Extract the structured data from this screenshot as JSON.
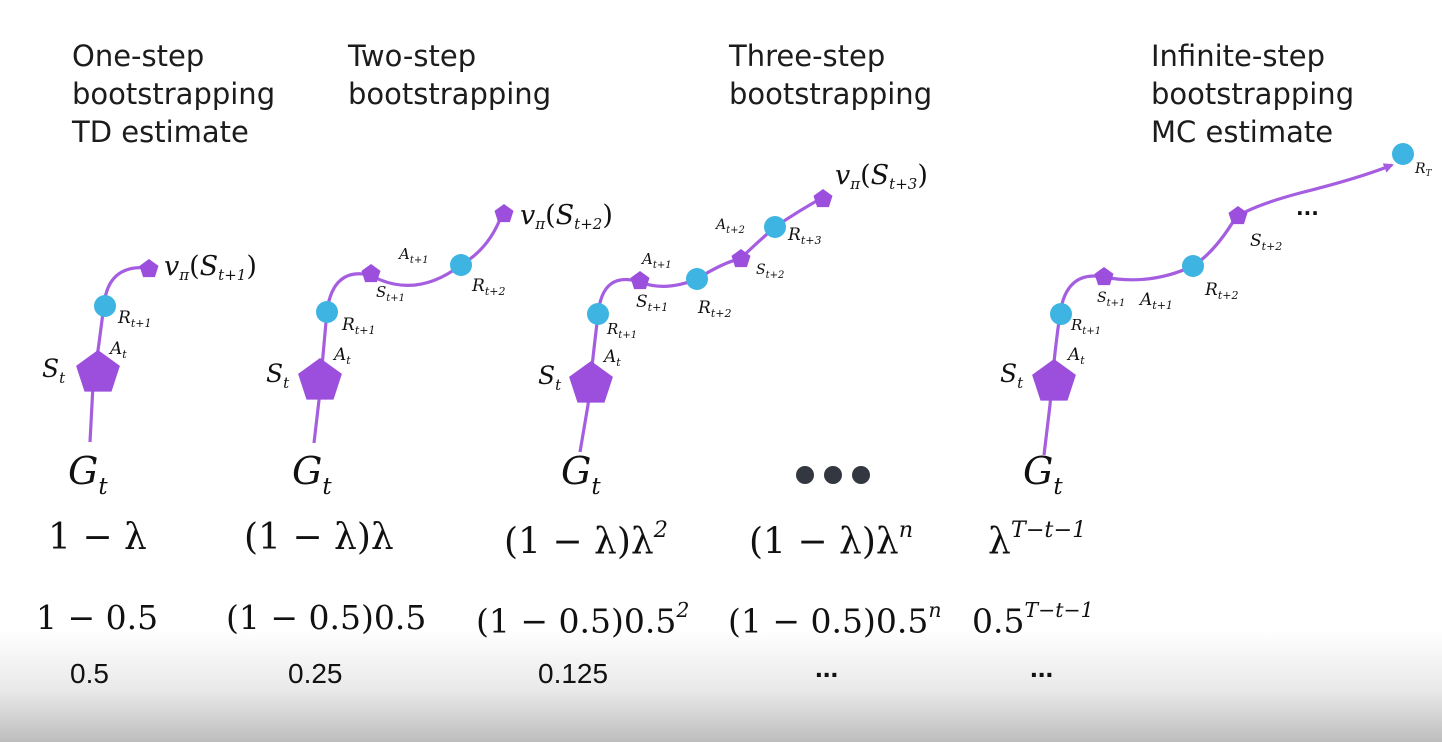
{
  "columns": [
    {
      "title": [
        "One-step",
        "bootstrapping",
        "TD estimate"
      ],
      "graph": {
        "state": "S_t",
        "action": "A_t",
        "reward": "R_{t+1}",
        "value": "v_π(S_{t+1})"
      },
      "return": "G_t",
      "weight": "1 − λ",
      "numeric_expr": "1 − 0.5",
      "value": "0.5"
    },
    {
      "title": [
        "Two-step",
        "bootstrapping"
      ],
      "graph": {
        "states": [
          "S_t",
          "S_{t+1}"
        ],
        "actions": [
          "A_t",
          "A_{t+1}"
        ],
        "rewards": [
          "R_{t+1}",
          "R_{t+2}"
        ],
        "value": "v_π(S_{t+2})"
      },
      "return": "G_t",
      "weight": "(1 − λ)λ",
      "numeric_expr": "(1 − 0.5)0.5",
      "value": "0.25"
    },
    {
      "title": [
        "Three-step",
        "bootstrapping"
      ],
      "graph": {
        "states": [
          "S_t",
          "S_{t+1}",
          "S_{t+2}"
        ],
        "actions": [
          "A_t",
          "A_{t+1}",
          "A_{t+2}"
        ],
        "rewards": [
          "R_{t+1}",
          "R_{t+2}",
          "R_{t+3}"
        ],
        "value": "v_π(S_{t+3})"
      },
      "return": "G_t",
      "weight": "(1 − λ)λ^2",
      "numeric_expr": "(1 − 0.5)0.5^2",
      "value": "0.125"
    },
    {
      "title": [],
      "return": "•••",
      "weight": "(1 − λ)λ^n",
      "numeric_expr": "(1 − 0.5)0.5^n",
      "value": "..."
    },
    {
      "title": [
        "Infinite-step",
        "bootstrapping",
        "MC estimate"
      ],
      "graph": {
        "states": [
          "S_t",
          "S_{t+1}",
          "S_{t+2}"
        ],
        "actions": [
          "A_t",
          "A_{t+1}"
        ],
        "rewards": [
          "R_{t+1}",
          "R_{t+2}",
          "R_T"
        ],
        "ellipsis": "..."
      },
      "return": "G_t",
      "weight": "λ^{T−t−1}",
      "numeric_expr": "0.5^{T−t−1}",
      "value": "..."
    }
  ],
  "labels": {
    "G": "G",
    "t": "t",
    "one_minus_lambda": "1 − λ",
    "paren_lambda": "(1 − λ)λ",
    "lambda": "λ",
    "two": "2",
    "n": "n",
    "T_exp": "T−t−1",
    "one_minus_half": "1 − 0.5",
    "paren_half": "(1 − 0.5)0.5",
    "half": "0.5"
  },
  "colors": {
    "path": "#a55ee0",
    "state": "#9b4fdc",
    "reward": "#3db4e2",
    "text": "#111111"
  }
}
